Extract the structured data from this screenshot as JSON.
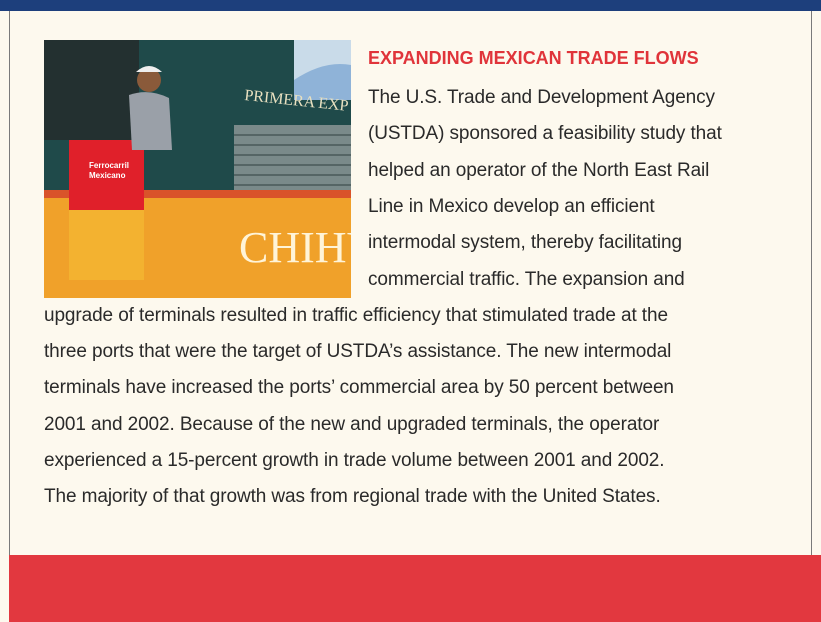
{
  "title": "EXPANDING MEXICAN TRADE FLOWS",
  "body_lines": [
    "The U.S. Trade and Development Agency",
    "(USTDA) sponsored a feasibility study that",
    "helped an operator of the North East Rail",
    "Line in Mexico develop an efficient",
    "intermodal system, thereby facilitating",
    "commercial traffic. The expansion and",
    "upgrade of terminals resulted in traffic efficiency that stimulated trade at the",
    "three ports that were the target of USTDA’s assistance. The new intermodal",
    "terminals have increased the ports’ commercial area by 50 percent between",
    "2001 and 2002. Because of the new and upgraded terminals, the operator",
    "experienced a 15-percent growth in trade volume between 2001 and 2002.",
    "The majority of that growth was from regional trade with the United States."
  ],
  "photo": {
    "texts": [
      "PRIMERA EXP",
      "CHIHU",
      "Ferrocarril",
      "Mexicano"
    ]
  }
}
